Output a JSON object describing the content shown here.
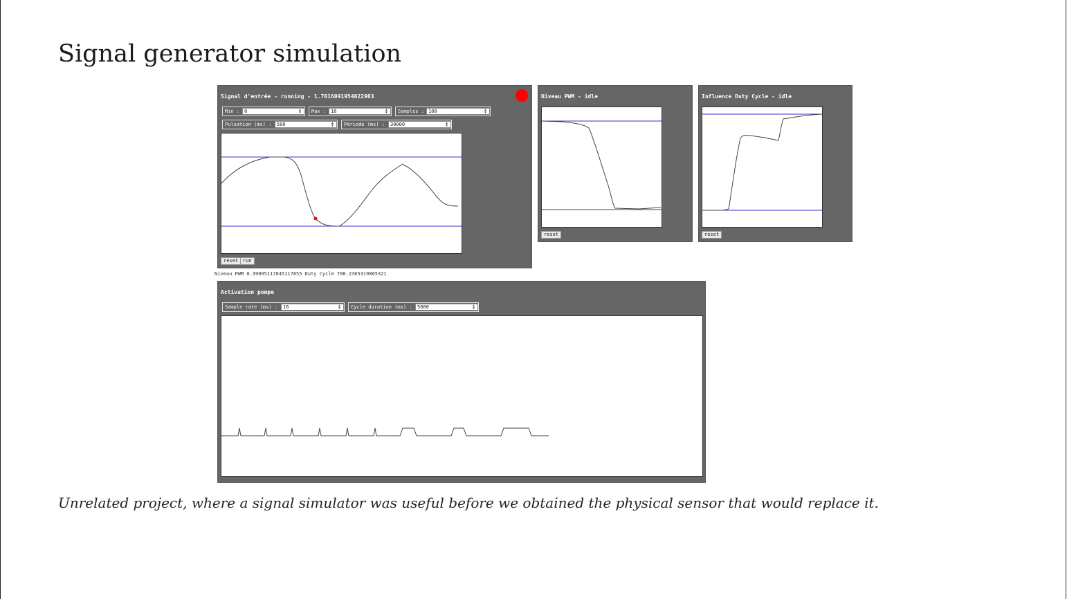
{
  "page": {
    "title": "Signal generator simulation",
    "caption": "Unrelated project, where a signal simulator was useful before we obtained the physical sensor that would replace it."
  },
  "input_panel": {
    "title": "Signal d'entrée - running - 1.7816091954022983",
    "status_color": "#ff0000",
    "min": {
      "label": "Min :",
      "value": "0"
    },
    "max": {
      "label": "Max :",
      "value": "10"
    },
    "samples": {
      "label": "Samples :",
      "value": "100"
    },
    "pulsation": {
      "label": "Pulsation (ms) :",
      "value": "500"
    },
    "periode": {
      "label": "Période (ms) :",
      "value": "30000"
    },
    "reset_label": "reset",
    "run_label": "run"
  },
  "pwm_panel": {
    "title": "Niveau PWM - idle",
    "reset_label": "reset"
  },
  "duty_panel": {
    "title": "Influence Duty Cycle - idle",
    "reset_label": "reset"
  },
  "status_line": "Niveau PWM 0.39095117845117855 Duty Cycle 708.2365319865321",
  "pump_panel": {
    "title": "Activation pompe",
    "sample_rate": {
      "label": "Sample rate (ms) :",
      "value": "16"
    },
    "cycle_duration": {
      "label": "Cycle duration (ms) :",
      "value": "5000"
    }
  },
  "colors": {
    "panel_bg": "#666666",
    "limit_line": "#3333cc",
    "signal_line": "#444444",
    "marker": "#ff0000"
  }
}
